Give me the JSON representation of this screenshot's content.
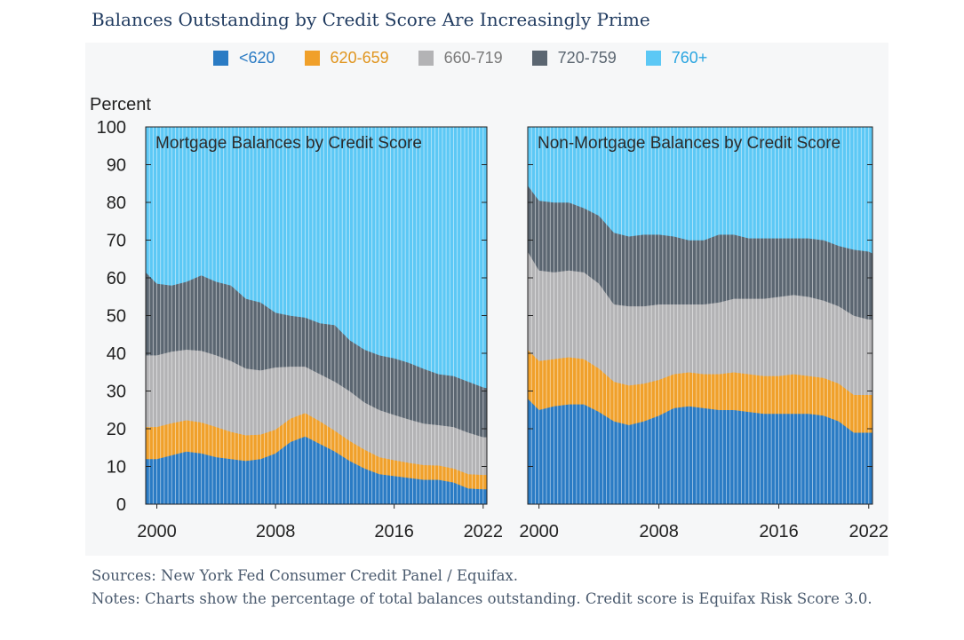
{
  "title": "Balances Outstanding by Credit Score Are Increasingly Prime",
  "legend": [
    {
      "label": "<620",
      "color": "#2a7bc4",
      "text_color": "#2a7bc4"
    },
    {
      "label": "620-659",
      "color": "#f0a02a",
      "text_color": "#e0951f"
    },
    {
      "label": "660-719",
      "color": "#b3b3b5",
      "text_color": "#7a7a7a"
    },
    {
      "label": "720-759",
      "color": "#5b6671",
      "text_color": "#5b6671"
    },
    {
      "label": "760+",
      "color": "#5cc8f5",
      "text_color": "#2aa5e0"
    }
  ],
  "y_axis_label": "Percent",
  "notes": {
    "sources": "Sources: New York Fed Consumer Credit Panel / Equifax.",
    "notes": "Notes: Charts show the percentage of total balances outstanding. Credit score is Equifax Risk Score 3.0."
  },
  "chart_data": [
    {
      "type": "area",
      "stacked": true,
      "title": "Mortgage Balances by Credit Score",
      "x": [
        1999.25,
        2000,
        2001,
        2002,
        2003,
        2004,
        2005,
        2006,
        2007,
        2008,
        2009,
        2010,
        2011,
        2012,
        2013,
        2014,
        2015,
        2016,
        2017,
        2018,
        2019,
        2020,
        2021,
        2022,
        2022.25
      ],
      "xticks": [
        "2000",
        "2008",
        "2016",
        "2022"
      ],
      "ylim": [
        0,
        100
      ],
      "yticks": [
        0,
        10,
        20,
        30,
        40,
        50,
        60,
        70,
        80,
        90,
        100
      ],
      "ylabel": "Percent",
      "series": [
        {
          "name": "<620",
          "values": [
            12,
            12,
            13,
            14,
            13.5,
            12.5,
            12,
            11.5,
            12,
            13.5,
            16.5,
            18,
            16,
            14,
            11.5,
            9.5,
            8,
            7.5,
            7,
            6.5,
            6.5,
            5.8,
            4.2,
            4,
            4
          ]
        },
        {
          "name": "620-659",
          "values": [
            8.5,
            8.5,
            8.5,
            8.3,
            8.2,
            8,
            7.2,
            6.8,
            6.5,
            6.3,
            6.2,
            6.2,
            6,
            5.5,
            5.3,
            5,
            4.5,
            4.2,
            4,
            3.9,
            3.8,
            3.7,
            3.8,
            3.8,
            3.8
          ]
        },
        {
          "name": "660-719",
          "values": [
            19,
            19,
            19,
            18.7,
            19,
            19,
            18.8,
            17.7,
            17,
            16.5,
            13.8,
            12.3,
            12.5,
            13,
            13.2,
            12.5,
            12.5,
            12,
            11.5,
            11,
            10.7,
            11,
            11,
            10,
            10
          ]
        },
        {
          "name": "720-759",
          "values": [
            22,
            19,
            17.5,
            18,
            20,
            19.5,
            20,
            18.5,
            18,
            14.5,
            13.5,
            13,
            13.5,
            15,
            13.5,
            14,
            14.5,
            15,
            15,
            14.5,
            13.5,
            13.5,
            13.5,
            13.2,
            13
          ]
        },
        {
          "name": "760+",
          "values": [
            38.5,
            41.5,
            42,
            41,
            39.3,
            41,
            42,
            45.5,
            46.5,
            49.2,
            50,
            50.5,
            52,
            52.5,
            56.5,
            59,
            60.5,
            61.3,
            62.5,
            64.1,
            65.5,
            66,
            67.5,
            69,
            69.2
          ]
        }
      ]
    },
    {
      "type": "area",
      "stacked": true,
      "title": "Non-Mortgage Balances by Credit Score",
      "x": [
        1999.25,
        2000,
        2001,
        2002,
        2003,
        2004,
        2005,
        2006,
        2007,
        2008,
        2009,
        2010,
        2011,
        2012,
        2013,
        2014,
        2015,
        2016,
        2017,
        2018,
        2019,
        2020,
        2021,
        2022,
        2022.25
      ],
      "xticks": [
        "2000",
        "2008",
        "2016",
        "2022"
      ],
      "ylim": [
        0,
        100
      ],
      "yticks": [
        0,
        10,
        20,
        30,
        40,
        50,
        60,
        70,
        80,
        90,
        100
      ],
      "series": [
        {
          "name": "<620",
          "values": [
            28,
            25,
            26,
            26.5,
            26.5,
            24.5,
            22,
            21,
            22,
            23.5,
            25.5,
            26,
            25.5,
            25,
            25,
            24.5,
            24,
            24,
            24,
            24,
            23.5,
            22,
            19,
            19,
            19
          ]
        },
        {
          "name": "620-659",
          "values": [
            13,
            13,
            12.5,
            12.5,
            12,
            11.5,
            10.5,
            10.5,
            10,
            9.5,
            9,
            9,
            9,
            9.5,
            10,
            10,
            10,
            10,
            10.5,
            10,
            10,
            10,
            10,
            10,
            10
          ]
        },
        {
          "name": "660-719",
          "values": [
            26,
            24,
            23,
            23,
            23,
            22.5,
            20.5,
            21,
            20.5,
            20,
            18.5,
            18,
            18.5,
            19,
            19.5,
            20,
            20.5,
            21,
            21,
            21,
            20.5,
            20.5,
            21,
            20,
            20
          ]
        },
        {
          "name": "720-759",
          "values": [
            17.5,
            18.5,
            18.5,
            18,
            17,
            18,
            19,
            18.5,
            19,
            18.5,
            18,
            17,
            17,
            18,
            17,
            16,
            16,
            15.5,
            15,
            15.5,
            16,
            16,
            17.5,
            18,
            17.5
          ]
        },
        {
          "name": "760+",
          "values": [
            15.5,
            19.5,
            20,
            20,
            21.5,
            23.5,
            28,
            29,
            28.5,
            28.5,
            29,
            30,
            30,
            28.5,
            28.5,
            29.5,
            29.5,
            29.5,
            29.5,
            29.5,
            30,
            31.5,
            32.5,
            33,
            33.5
          ]
        }
      ]
    }
  ]
}
